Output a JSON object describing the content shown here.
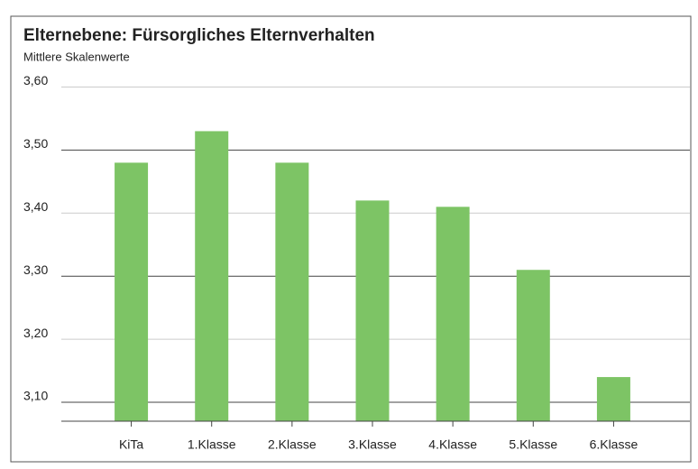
{
  "chart_data": {
    "type": "bar",
    "title": "Elternebene: Fürsorgliches Elternverhalten",
    "subtitle": "Mittlere Skalenwerte",
    "categories": [
      "KiTa",
      "1.Klasse",
      "2.Klasse",
      "3.Klasse",
      "4.Klasse",
      "5.Klasse",
      "6.Klasse"
    ],
    "values": [
      3.48,
      3.53,
      3.48,
      3.42,
      3.41,
      3.31,
      3.14
    ],
    "color": "#7dc465",
    "ylim": [
      3.07,
      3.6
    ],
    "yticks": [
      {
        "value": 3.1,
        "label": "3,10"
      },
      {
        "value": 3.2,
        "label": "3,20"
      },
      {
        "value": 3.3,
        "label": "3,30"
      },
      {
        "value": 3.4,
        "label": "3,40"
      },
      {
        "value": 3.5,
        "label": "3,50"
      },
      {
        "value": 3.6,
        "label": "3,60"
      }
    ],
    "grid": true
  }
}
